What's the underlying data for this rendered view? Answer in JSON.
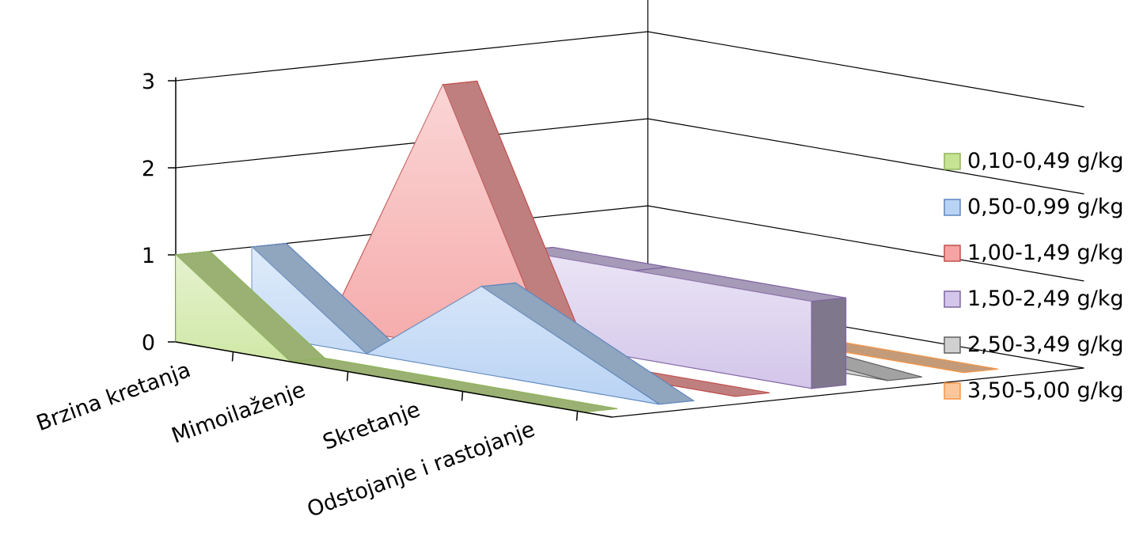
{
  "chart_data": {
    "type": "area",
    "view": "3d-perspective",
    "categories": [
      "Brzina kretanja",
      "Mimoilaženje",
      "Skretanje",
      "Odstojanje i rastojanje"
    ],
    "y_ticks": [
      "0",
      "1",
      "2",
      "3"
    ],
    "ylim": [
      0,
      3
    ],
    "grid": true,
    "legend_position": "right",
    "series": [
      {
        "name": "0,10-0,49 g/kg",
        "values": [
          1,
          0,
          0,
          0
        ],
        "color": "#c6e394",
        "edge": "#8fb45a"
      },
      {
        "name": "0,50-0,99 g/kg",
        "values": [
          1,
          0,
          1,
          0
        ],
        "color": "#b9d3f4",
        "edge": "#5d86bd"
      },
      {
        "name": "1,00-1,49 g/kg",
        "values": [
          0,
          3,
          0,
          0
        ],
        "color": "#f5a3a3",
        "edge": "#c0504d"
      },
      {
        "name": "1,50-2,49 g/kg",
        "values": [
          0,
          1,
          1,
          1
        ],
        "color": "#d3c6ea",
        "edge": "#8064a2"
      },
      {
        "name": "2,50-3,49 g/kg",
        "values": [
          0,
          0,
          0.2,
          0
        ],
        "color": "#d0d0d0",
        "edge": "#606060"
      },
      {
        "name": "3,50-5,00 g/kg",
        "values": [
          0,
          0,
          0,
          0
        ],
        "color": "#fbc79a",
        "edge": "#f79646"
      }
    ]
  }
}
